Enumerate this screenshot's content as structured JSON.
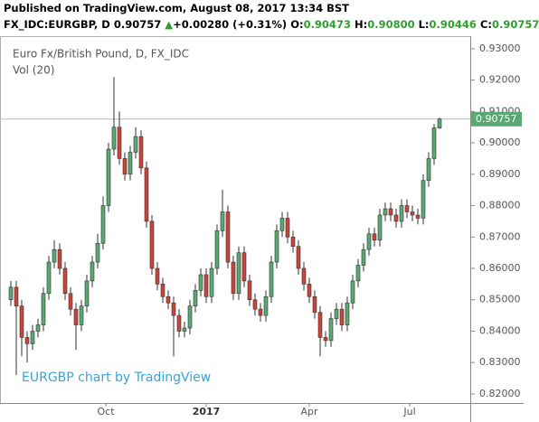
{
  "chart_data": {
    "type": "candlestick",
    "header": {
      "published": "Published on TradingView.com, August 08, 2017 13:34 BST",
      "symbol": "FX_IDC:EURGBP, D",
      "last": "0.90757",
      "arrow": "▲",
      "change": "+0.00280 (+0.31%)",
      "o_label": "O:",
      "o": "0.90473",
      "h_label": "H:",
      "h": "0.90800",
      "l_label": "L:",
      "l": "0.90446",
      "c_label": "C:",
      "c": "0.90757"
    },
    "legend_title": "Euro Fx/British Pound, D, FX_IDC",
    "legend_sub": "Vol (20)",
    "watermark": "EURGBP chart by TradingView",
    "up_color": "#5aa874",
    "down_color": "#c8453a",
    "wick_color": "#333333",
    "ylim": [
      0.8171,
      0.934
    ],
    "yticks": [
      {
        "value": 0.82,
        "label": "0.82000"
      },
      {
        "value": 0.83,
        "label": "0.83000"
      },
      {
        "value": 0.84,
        "label": "0.84000"
      },
      {
        "value": 0.85,
        "label": "0.85000"
      },
      {
        "value": 0.86,
        "label": "0.86000"
      },
      {
        "value": 0.87,
        "label": "0.87000"
      },
      {
        "value": 0.88,
        "label": "0.88000"
      },
      {
        "value": 0.89,
        "label": "0.89000"
      },
      {
        "value": 0.9,
        "label": "0.90000"
      },
      {
        "value": 0.91,
        "label": "0.91000"
      },
      {
        "value": 0.92,
        "label": "0.92000"
      },
      {
        "value": 0.93,
        "label": "0.93000"
      }
    ],
    "xticks": [
      {
        "value": 17.5,
        "label": "Oct"
      },
      {
        "value": 36,
        "label": "2017"
      },
      {
        "value": 55,
        "label": "Apr"
      },
      {
        "value": 73.5,
        "label": "Jul"
      }
    ],
    "last_price": {
      "value": 0.90757,
      "label": "0.90757"
    },
    "open": [
      0.85,
      0.854,
      0.848,
      0.838,
      0.836,
      0.84,
      0.842,
      0.852,
      0.862,
      0.866,
      0.86,
      0.852,
      0.847,
      0.842,
      0.848,
      0.856,
      0.862,
      0.868,
      0.88,
      0.898,
      0.905,
      0.895,
      0.89,
      0.897,
      0.902,
      0.892,
      0.875,
      0.86,
      0.855,
      0.851,
      0.849,
      0.845,
      0.84,
      0.841,
      0.848,
      0.853,
      0.858,
      0.851,
      0.86,
      0.872,
      0.878,
      0.862,
      0.852,
      0.865,
      0.856,
      0.85,
      0.847,
      0.845,
      0.851,
      0.862,
      0.872,
      0.876,
      0.87,
      0.867,
      0.86,
      0.855,
      0.851,
      0.846,
      0.838,
      0.837,
      0.844,
      0.847,
      0.842,
      0.849,
      0.856,
      0.861,
      0.866,
      0.871,
      0.869,
      0.877,
      0.879,
      0.877,
      0.875,
      0.88,
      0.878,
      0.877,
      0.876,
      0.888,
      0.895,
      0.90473
    ],
    "high": [
      0.856,
      0.856,
      0.85,
      0.84,
      0.842,
      0.844,
      0.854,
      0.864,
      0.869,
      0.868,
      0.862,
      0.854,
      0.849,
      0.85,
      0.858,
      0.864,
      0.871,
      0.883,
      0.9,
      0.921,
      0.91,
      0.897,
      0.899,
      0.905,
      0.904,
      0.894,
      0.877,
      0.862,
      0.857,
      0.853,
      0.851,
      0.847,
      0.843,
      0.85,
      0.855,
      0.86,
      0.86,
      0.862,
      0.874,
      0.885,
      0.88,
      0.864,
      0.867,
      0.867,
      0.858,
      0.852,
      0.849,
      0.853,
      0.864,
      0.874,
      0.878,
      0.878,
      0.872,
      0.869,
      0.862,
      0.857,
      0.853,
      0.848,
      0.84,
      0.846,
      0.849,
      0.849,
      0.851,
      0.858,
      0.863,
      0.868,
      0.873,
      0.873,
      0.879,
      0.881,
      0.881,
      0.879,
      0.882,
      0.882,
      0.88,
      0.879,
      0.89,
      0.897,
      0.906,
      0.908
    ],
    "low": [
      0.848,
      0.826,
      0.832,
      0.83,
      0.834,
      0.838,
      0.84,
      0.85,
      0.86,
      0.858,
      0.85,
      0.845,
      0.834,
      0.84,
      0.846,
      0.854,
      0.86,
      0.866,
      0.878,
      0.896,
      0.893,
      0.888,
      0.888,
      0.895,
      0.89,
      0.873,
      0.858,
      0.853,
      0.849,
      0.847,
      0.832,
      0.838,
      0.838,
      0.839,
      0.846,
      0.851,
      0.849,
      0.849,
      0.858,
      0.87,
      0.86,
      0.85,
      0.85,
      0.854,
      0.848,
      0.845,
      0.843,
      0.843,
      0.849,
      0.86,
      0.87,
      0.868,
      0.865,
      0.858,
      0.853,
      0.849,
      0.844,
      0.832,
      0.835,
      0.835,
      0.842,
      0.84,
      0.84,
      0.847,
      0.854,
      0.859,
      0.864,
      0.867,
      0.867,
      0.875,
      0.875,
      0.873,
      0.873,
      0.876,
      0.875,
      0.874,
      0.874,
      0.886,
      0.893,
      0.90446
    ],
    "close": [
      0.854,
      0.848,
      0.838,
      0.836,
      0.84,
      0.842,
      0.852,
      0.862,
      0.866,
      0.86,
      0.852,
      0.847,
      0.842,
      0.848,
      0.856,
      0.862,
      0.868,
      0.88,
      0.898,
      0.905,
      0.895,
      0.89,
      0.897,
      0.902,
      0.892,
      0.875,
      0.86,
      0.855,
      0.851,
      0.849,
      0.845,
      0.84,
      0.841,
      0.848,
      0.853,
      0.858,
      0.851,
      0.86,
      0.872,
      0.878,
      0.862,
      0.852,
      0.865,
      0.856,
      0.85,
      0.847,
      0.845,
      0.851,
      0.862,
      0.872,
      0.876,
      0.87,
      0.867,
      0.86,
      0.855,
      0.851,
      0.846,
      0.838,
      0.837,
      0.844,
      0.847,
      0.842,
      0.849,
      0.856,
      0.861,
      0.866,
      0.871,
      0.869,
      0.877,
      0.879,
      0.877,
      0.875,
      0.88,
      0.878,
      0.877,
      0.876,
      0.888,
      0.895,
      0.90477,
      0.90757
    ]
  }
}
